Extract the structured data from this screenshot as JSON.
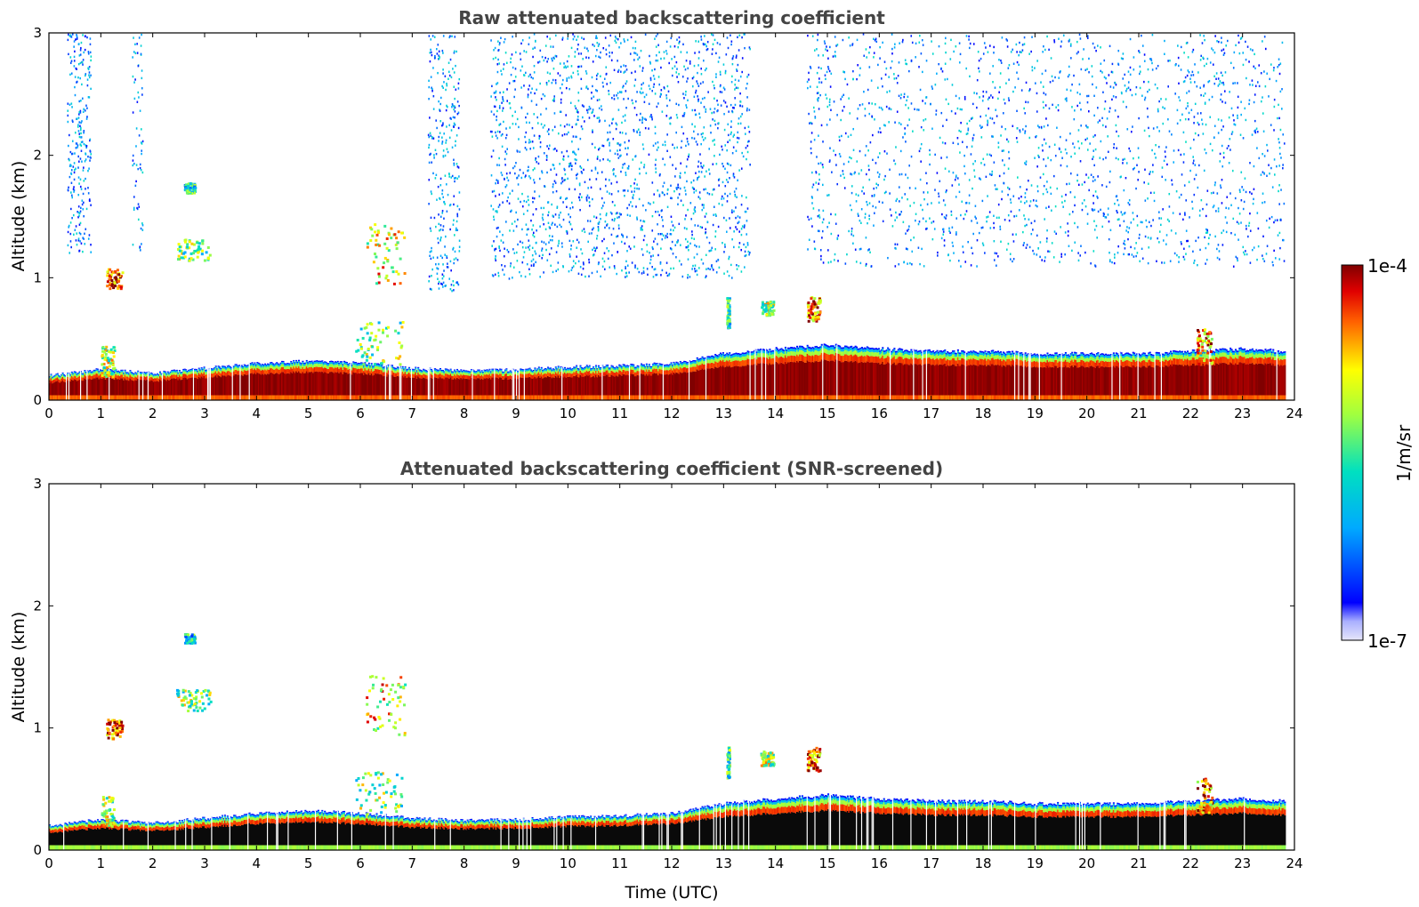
{
  "chart_data": [
    {
      "type": "heatmap",
      "title": "Raw attenuated backscattering coefficient",
      "xlabel": "",
      "ylabel": "Altitude (km)",
      "xlim": [
        0,
        24
      ],
      "ylim": [
        0,
        3
      ],
      "xticks": [
        "0",
        "1",
        "2",
        "3",
        "4",
        "5",
        "6",
        "7",
        "8",
        "9",
        "10",
        "11",
        "12",
        "13",
        "14",
        "15",
        "16",
        "17",
        "18",
        "19",
        "20",
        "21",
        "22",
        "23",
        "24"
      ],
      "yticks": [
        "0",
        "1",
        "2",
        "3"
      ],
      "screened": false,
      "layer_top_km": [
        {
          "t": 0,
          "h": 0.2
        },
        {
          "t": 1,
          "h": 0.25
        },
        {
          "t": 2,
          "h": 0.22
        },
        {
          "t": 3,
          "h": 0.26
        },
        {
          "t": 4,
          "h": 0.3
        },
        {
          "t": 5,
          "h": 0.32
        },
        {
          "t": 6,
          "h": 0.3
        },
        {
          "t": 7,
          "h": 0.26
        },
        {
          "t": 8,
          "h": 0.24
        },
        {
          "t": 9,
          "h": 0.25
        },
        {
          "t": 10,
          "h": 0.27
        },
        {
          "t": 11,
          "h": 0.28
        },
        {
          "t": 12,
          "h": 0.3
        },
        {
          "t": 13,
          "h": 0.38
        },
        {
          "t": 14,
          "h": 0.42
        },
        {
          "t": 15,
          "h": 0.45
        },
        {
          "t": 16,
          "h": 0.42
        },
        {
          "t": 17,
          "h": 0.4
        },
        {
          "t": 18,
          "h": 0.4
        },
        {
          "t": 19,
          "h": 0.38
        },
        {
          "t": 20,
          "h": 0.38
        },
        {
          "t": 21,
          "h": 0.38
        },
        {
          "t": 22,
          "h": 0.4
        },
        {
          "t": 23,
          "h": 0.42
        },
        {
          "t": 23.8,
          "h": 0.4
        }
      ],
      "data_end_hour": 23.8,
      "cloud_features": [
        {
          "t0": 1.1,
          "t1": 1.4,
          "h0": 0.92,
          "h1": 1.08,
          "level": 0.9
        },
        {
          "t0": 2.45,
          "t1": 3.1,
          "h0": 1.15,
          "h1": 1.32,
          "level": 0.55
        },
        {
          "t0": 2.6,
          "t1": 2.8,
          "h0": 1.7,
          "h1": 1.78,
          "level": 0.4
        },
        {
          "t0": 6.1,
          "t1": 6.85,
          "h0": 0.95,
          "h1": 1.45,
          "level": 0.7
        },
        {
          "t0": 5.9,
          "t1": 6.8,
          "h0": 0.3,
          "h1": 0.65,
          "level": 0.55
        },
        {
          "t0": 1.0,
          "t1": 1.25,
          "h0": 0.2,
          "h1": 0.45,
          "level": 0.6
        },
        {
          "t0": 13.7,
          "t1": 13.95,
          "h0": 0.7,
          "h1": 0.82,
          "level": 0.6
        },
        {
          "t0": 14.6,
          "t1": 14.85,
          "h0": 0.65,
          "h1": 0.85,
          "level": 0.85
        },
        {
          "t0": 13.05,
          "t1": 13.1,
          "h0": 0.6,
          "h1": 0.85,
          "level": 0.5
        },
        {
          "t0": 22.1,
          "t1": 22.4,
          "h0": 0.3,
          "h1": 0.6,
          "level": 0.8
        }
      ],
      "noise_regions": [
        {
          "t0": 0.35,
          "t1": 0.8,
          "h0": 1.2,
          "h1": 3.0,
          "density": 0.35
        },
        {
          "t0": 1.6,
          "t1": 1.8,
          "h0": 1.2,
          "h1": 3.0,
          "density": 0.2
        },
        {
          "t0": 7.3,
          "t1": 7.9,
          "h0": 0.9,
          "h1": 3.0,
          "density": 0.25
        },
        {
          "t0": 8.5,
          "t1": 13.5,
          "h0": 1.0,
          "h1": 3.0,
          "density": 0.2
        },
        {
          "t0": 14.6,
          "t1": 23.8,
          "h0": 1.1,
          "h1": 3.0,
          "density": 0.12
        }
      ]
    },
    {
      "type": "heatmap",
      "title": "Attenuated backscattering coefficient (SNR-screened)",
      "xlabel": "Time (UTC)",
      "ylabel": "Altitude (km)",
      "xlim": [
        0,
        24
      ],
      "ylim": [
        0,
        3
      ],
      "xticks": [
        "0",
        "1",
        "2",
        "3",
        "4",
        "5",
        "6",
        "7",
        "8",
        "9",
        "10",
        "11",
        "12",
        "13",
        "14",
        "15",
        "16",
        "17",
        "18",
        "19",
        "20",
        "21",
        "22",
        "23",
        "24"
      ],
      "yticks": [
        "0",
        "1",
        "2",
        "3"
      ],
      "screened": true
    }
  ],
  "colorbar": {
    "label": "1/m/sr",
    "max_label": "1e-4",
    "min_label": "1e-7",
    "colormap": "jet"
  }
}
